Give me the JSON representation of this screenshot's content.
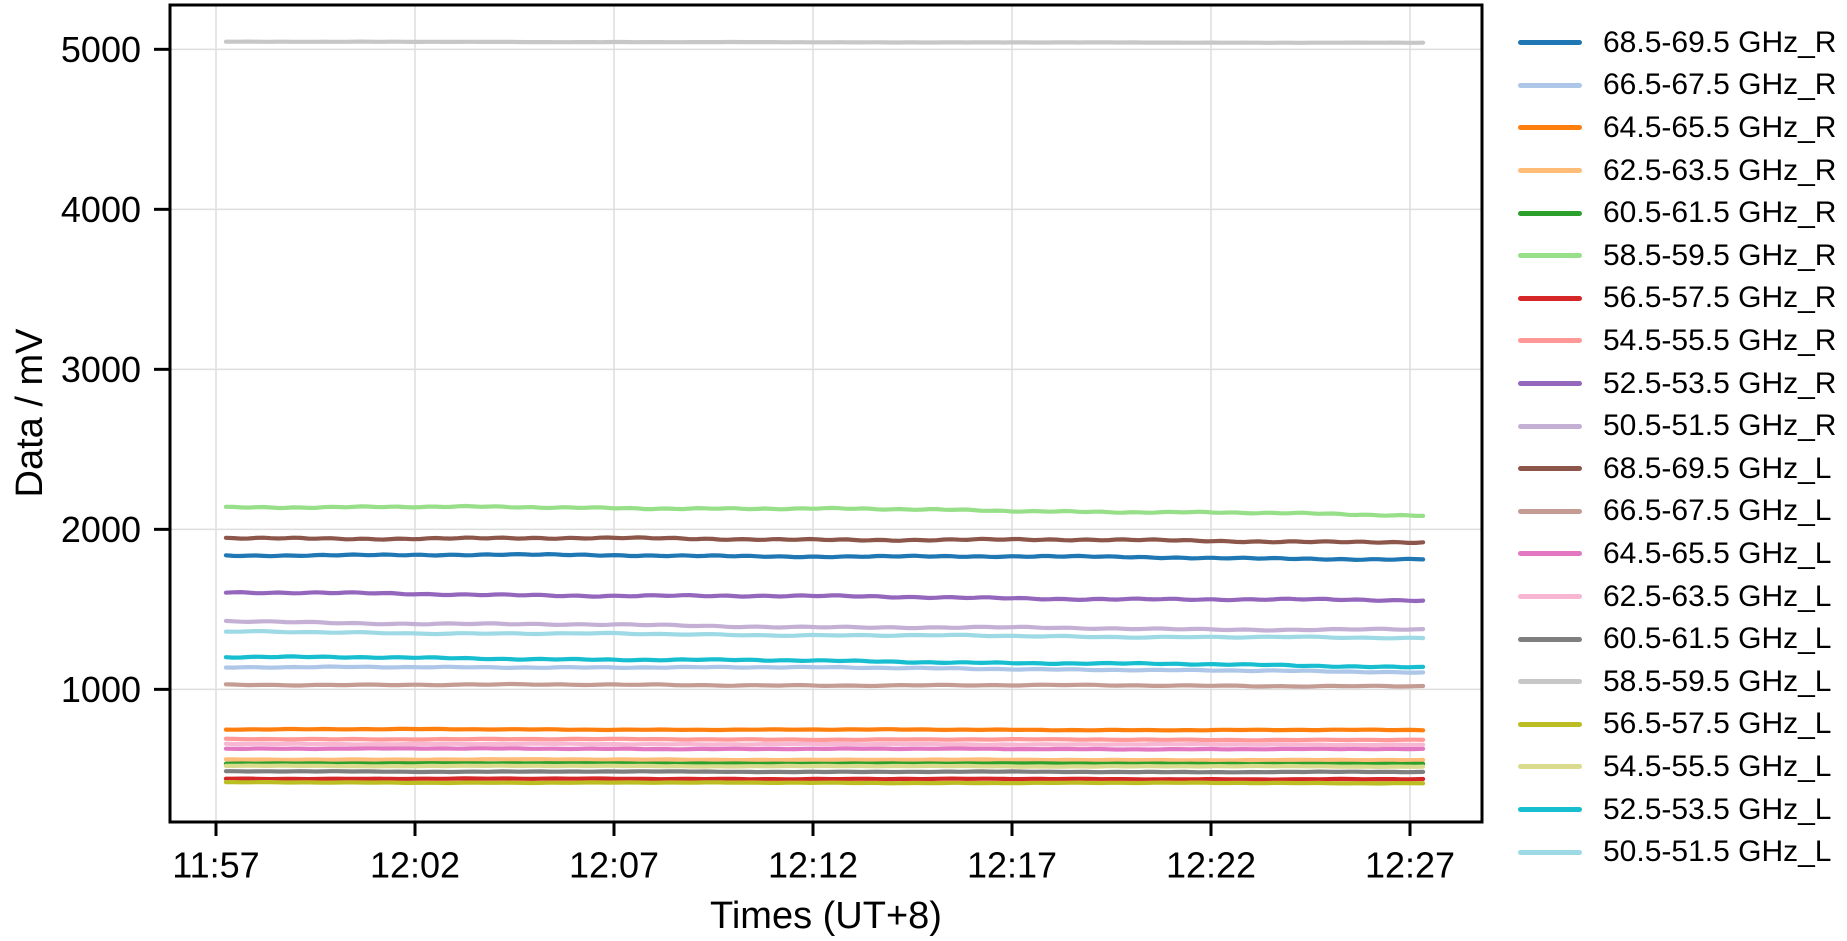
{
  "chart_data": {
    "type": "line",
    "title": "",
    "xlabel": "Times (UT+8)",
    "ylabel": "Data / mV",
    "x_tick_labels": [
      "11:57",
      "12:02",
      "12:07",
      "12:12",
      "12:17",
      "12:22",
      "12:27"
    ],
    "x_tick_minutes": [
      0,
      5,
      10,
      15,
      20,
      25,
      30
    ],
    "y_ticks": [
      1000,
      2000,
      3000,
      4000,
      5000
    ],
    "ylim": [
      171,
      5277
    ],
    "data_start_minute": 0.25,
    "data_end_minute": 30.33,
    "grid": true,
    "legend_position": "right",
    "background_color": "#ffffff",
    "grid_color": "#dedede",
    "spine_color": "#000000",
    "text_color": "#000000",
    "series": [
      {
        "name": "68.5-69.5 GHz_R",
        "color": "#1f77b4",
        "start_mV": 1840,
        "mid_mV": 1833,
        "end_mV": 1814,
        "noise_mV": 7
      },
      {
        "name": "66.5-67.5 GHz_R",
        "color": "#aec7e8",
        "start_mV": 1135,
        "mid_mV": 1135,
        "end_mV": 1103,
        "noise_mV": 5
      },
      {
        "name": "64.5-65.5 GHz_R",
        "color": "#ff7f0e",
        "start_mV": 751,
        "mid_mV": 748,
        "end_mV": 745,
        "noise_mV": 3
      },
      {
        "name": "62.5-63.5 GHz_R",
        "color": "#ffbb78",
        "start_mV": 562,
        "mid_mV": 560,
        "end_mV": 557,
        "noise_mV": 2.5
      },
      {
        "name": "60.5-61.5 GHz_R",
        "color": "#2ca02c",
        "start_mV": 537,
        "mid_mV": 536,
        "end_mV": 534,
        "noise_mV": 2
      },
      {
        "name": "58.5-59.5 GHz_R",
        "color": "#98df8a",
        "start_mV": 2140,
        "mid_mV": 2127,
        "end_mV": 2086,
        "noise_mV": 7
      },
      {
        "name": "56.5-57.5 GHz_R",
        "color": "#d62728",
        "start_mV": 442,
        "mid_mV": 440,
        "end_mV": 438,
        "noise_mV": 2.5
      },
      {
        "name": "54.5-55.5 GHz_R",
        "color": "#ff9896",
        "start_mV": 690,
        "mid_mV": 687,
        "end_mV": 684,
        "noise_mV": 3
      },
      {
        "name": "52.5-53.5 GHz_R",
        "color": "#9467bd",
        "start_mV": 1603,
        "mid_mV": 1579,
        "end_mV": 1553,
        "noise_mV": 8
      },
      {
        "name": "50.5-51.5 GHz_R",
        "color": "#c5b0d5",
        "start_mV": 1425,
        "mid_mV": 1391,
        "end_mV": 1372,
        "noise_mV": 7
      },
      {
        "name": "68.5-69.5 GHz_L",
        "color": "#8c564b",
        "start_mV": 1946,
        "mid_mV": 1938,
        "end_mV": 1921,
        "noise_mV": 8
      },
      {
        "name": "66.5-67.5 GHz_L",
        "color": "#c49c94",
        "start_mV": 1030,
        "mid_mV": 1026,
        "end_mV": 1021,
        "noise_mV": 5
      },
      {
        "name": "64.5-65.5 GHz_L",
        "color": "#e377c2",
        "start_mV": 630,
        "mid_mV": 628,
        "end_mV": 626,
        "noise_mV": 3
      },
      {
        "name": "62.5-63.5 GHz_L",
        "color": "#f7b6d2",
        "start_mV": 659,
        "mid_mV": 657,
        "end_mV": 654,
        "noise_mV": 3
      },
      {
        "name": "60.5-61.5 GHz_L",
        "color": "#7f7f7f",
        "start_mV": 487,
        "mid_mV": 485,
        "end_mV": 483,
        "noise_mV": 2.5
      },
      {
        "name": "58.5-59.5 GHz_L",
        "color": "#c7c7c7",
        "start_mV": 5048,
        "mid_mV": 5044,
        "end_mV": 5041,
        "noise_mV": 1
      },
      {
        "name": "56.5-57.5 GHz_L",
        "color": "#bcbd22",
        "start_mV": 418,
        "mid_mV": 416,
        "end_mV": 414,
        "noise_mV": 2.5
      },
      {
        "name": "54.5-55.5 GHz_L",
        "color": "#dbdb8d",
        "start_mV": 522,
        "mid_mV": 520,
        "end_mV": 518,
        "noise_mV": 2.5
      },
      {
        "name": "52.5-53.5 GHz_L",
        "color": "#17becf",
        "start_mV": 1203,
        "mid_mV": 1177,
        "end_mV": 1140,
        "noise_mV": 6
      },
      {
        "name": "50.5-51.5 GHz_L",
        "color": "#9edae5",
        "start_mV": 1359,
        "mid_mV": 1339,
        "end_mV": 1320,
        "noise_mV": 6
      }
    ]
  }
}
